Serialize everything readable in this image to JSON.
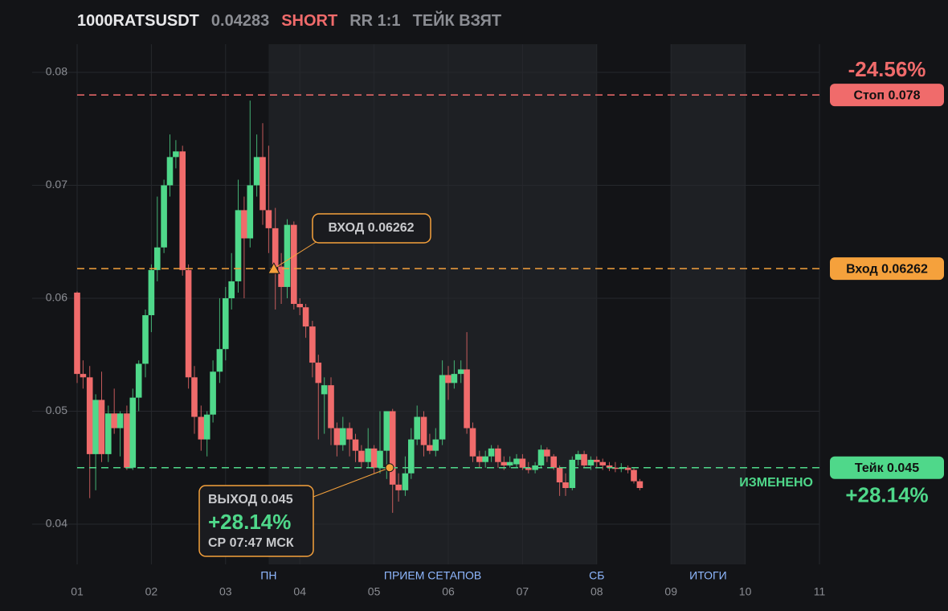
{
  "chart_data": {
    "type": "candlestick",
    "header": {
      "symbol": "1000RATSUSDT",
      "price": 0.04283,
      "side": "SHORT",
      "rr": "RR 1:1",
      "status": "ТЕЙК ВЗЯТ"
    },
    "xlim": [
      1,
      11
    ],
    "ylim": [
      0.03644,
      0.08249
    ],
    "xticks": [
      {
        "value": 1,
        "label": "01"
      },
      {
        "value": 2,
        "label": "02"
      },
      {
        "value": 3,
        "label": "03"
      },
      {
        "value": 4,
        "label": "04"
      },
      {
        "value": 5,
        "label": "05"
      },
      {
        "value": 6,
        "label": "06"
      },
      {
        "value": 7,
        "label": "07"
      },
      {
        "value": 8,
        "label": "08"
      },
      {
        "value": 9,
        "label": "09"
      },
      {
        "value": 10,
        "label": "10"
      },
      {
        "value": 11,
        "label": "11"
      }
    ],
    "yticks": [
      0.04,
      0.05,
      0.06,
      0.07,
      0.08
    ],
    "grid": true,
    "up_color": "#4fd88a",
    "down_color": "#f06b6b",
    "zones": [
      {
        "label": "ПРИЕМ СЕТАПОВ",
        "start": 3.58,
        "end": 8
      },
      {
        "label": "ИТОГИ",
        "start": 9,
        "end": 10
      }
    ],
    "markers": [
      {
        "label": "ПН",
        "x": 3.58
      },
      {
        "label": "СБ",
        "x": 8
      }
    ],
    "levels": [
      {
        "value": 0.078,
        "label": "Стоп 0.078",
        "color": "#f06b6b",
        "result": "-24.56%"
      },
      {
        "value": 0.06262,
        "label": "Вход 0.06262",
        "color": "#f5a13c"
      },
      {
        "value": 0.045,
        "label": "Тейк 0.045",
        "color": "#4fd88a",
        "result": "+28.14%",
        "note": "ИЗМЕНЕНО"
      }
    ],
    "entry": {
      "label": "ВХОД 0.06262",
      "x": 3.65,
      "y": 0.06262
    },
    "exit": {
      "label": "ВЫХОД 0.045",
      "result": "+28.14%",
      "time": "СР 07:47 МСК",
      "x": 5.21,
      "y": 0.045
    },
    "x": [
      1,
      1.08,
      1.17,
      1.25,
      1.33,
      1.42,
      1.5,
      1.58,
      1.67,
      1.75,
      1.83,
      1.92,
      2,
      2.08,
      2.17,
      2.25,
      2.33,
      2.42,
      2.5,
      2.58,
      2.67,
      2.75,
      2.83,
      2.92,
      3,
      3.08,
      3.17,
      3.25,
      3.33,
      3.42,
      3.5,
      3.58,
      3.67,
      3.75,
      3.83,
      3.92,
      4,
      4.08,
      4.17,
      4.25,
      4.33,
      4.42,
      4.5,
      4.58,
      4.67,
      4.75,
      4.83,
      4.92,
      5,
      5.08,
      5.17,
      5.25,
      5.33,
      5.42,
      5.5,
      5.58,
      5.67,
      5.75,
      5.83,
      5.92,
      6,
      6.08,
      6.17,
      6.25,
      6.33,
      6.42,
      6.5,
      6.58,
      6.67,
      6.75,
      6.83,
      6.92,
      7,
      7.08,
      7.17,
      7.25,
      7.33,
      7.42,
      7.5,
      7.58,
      7.67,
      7.75,
      7.83,
      7.92,
      8,
      8.08,
      8.17,
      8.25,
      8.33,
      8.42,
      8.5,
      8.58
    ],
    "open": [
      0.0605,
      0.0533,
      0.053,
      0.0462,
      0.051,
      0.0462,
      0.0498,
      0.0485,
      0.0498,
      0.045,
      0.0512,
      0.0542,
      0.0585,
      0.0625,
      0.0645,
      0.07,
      0.0725,
      0.073,
      0.0625,
      0.053,
      0.0495,
      0.0475,
      0.0497,
      0.0535,
      0.0555,
      0.06,
      0.0615,
      0.0678,
      0.0653,
      0.07,
      0.0725,
      0.0678,
      0.0662,
      0.0628,
      0.061,
      0.0665,
      0.0595,
      0.0592,
      0.0575,
      0.0543,
      0.0515,
      0.0523,
      0.0485,
      0.047,
      0.0485,
      0.0475,
      0.0465,
      0.0455,
      0.0467,
      0.045,
      0.0465,
      0.05,
      0.0435,
      0.043,
      0.0445,
      0.0475,
      0.0495,
      0.047,
      0.0465,
      0.0475,
      0.0532,
      0.0525,
      0.0533,
      0.0537,
      0.0485,
      0.046,
      0.0455,
      0.046,
      0.0467,
      0.0455,
      0.0452,
      0.0453,
      0.0458,
      0.045,
      0.0448,
      0.0452,
      0.0466,
      0.046,
      0.045,
      0.0437,
      0.0432,
      0.0457,
      0.0462,
      0.0452,
      0.0457,
      0.0455,
      0.0452,
      0.045,
      0.0449,
      0.045,
      0.0448,
      0.0438
    ],
    "high": [
      0.0606,
      0.0545,
      0.054,
      0.0515,
      0.0535,
      0.0505,
      0.052,
      0.05,
      0.0505,
      0.052,
      0.0545,
      0.059,
      0.063,
      0.069,
      0.0705,
      0.0745,
      0.074,
      0.0735,
      0.063,
      0.054,
      0.0505,
      0.05,
      0.0545,
      0.06,
      0.061,
      0.064,
      0.0705,
      0.069,
      0.0775,
      0.0745,
      0.0755,
      0.0735,
      0.068,
      0.064,
      0.067,
      0.0668,
      0.06,
      0.0595,
      0.058,
      0.055,
      0.053,
      0.053,
      0.049,
      0.0495,
      0.049,
      0.048,
      0.047,
      0.0485,
      0.047,
      0.05,
      0.05,
      0.0502,
      0.0445,
      0.046,
      0.0485,
      0.0505,
      0.05,
      0.048,
      0.0485,
      0.0545,
      0.054,
      0.0545,
      0.0545,
      0.057,
      0.049,
      0.0465,
      0.0465,
      0.047,
      0.047,
      0.046,
      0.046,
      0.0462,
      0.0462,
      0.0455,
      0.0455,
      0.047,
      0.0468,
      0.0462,
      0.0452,
      0.0445,
      0.046,
      0.0465,
      0.0465,
      0.046,
      0.046,
      0.0458,
      0.0455,
      0.0455,
      0.0454,
      0.0452,
      0.045,
      0.044
    ],
    "low": [
      0.0525,
      0.052,
      0.0423,
      0.043,
      0.0455,
      0.0455,
      0.048,
      0.046,
      0.0448,
      0.0448,
      0.05,
      0.053,
      0.057,
      0.0615,
      0.064,
      0.069,
      0.0715,
      0.062,
      0.052,
      0.048,
      0.0465,
      0.046,
      0.049,
      0.0525,
      0.0545,
      0.059,
      0.0605,
      0.06,
      0.0645,
      0.069,
      0.0665,
      0.064,
      0.059,
      0.0595,
      0.06,
      0.059,
      0.0585,
      0.0565,
      0.053,
      0.0475,
      0.048,
      0.047,
      0.046,
      0.0465,
      0.046,
      0.0455,
      0.045,
      0.045,
      0.0445,
      0.0445,
      0.044,
      0.041,
      0.042,
      0.0425,
      0.044,
      0.047,
      0.046,
      0.0462,
      0.046,
      0.047,
      0.051,
      0.052,
      0.0525,
      0.048,
      0.0455,
      0.045,
      0.045,
      0.0455,
      0.045,
      0.0448,
      0.045,
      0.045,
      0.0448,
      0.0445,
      0.0445,
      0.045,
      0.0455,
      0.0448,
      0.0425,
      0.0425,
      0.043,
      0.0452,
      0.045,
      0.0448,
      0.045,
      0.0448,
      0.0447,
      0.0446,
      0.0446,
      0.0445,
      0.0436,
      0.043
    ],
    "close": [
      0.0533,
      0.053,
      0.0462,
      0.051,
      0.0462,
      0.0498,
      0.0485,
      0.0498,
      0.045,
      0.0512,
      0.0542,
      0.0585,
      0.0625,
      0.0645,
      0.07,
      0.0725,
      0.073,
      0.0625,
      0.053,
      0.0495,
      0.0475,
      0.0497,
      0.0535,
      0.0555,
      0.06,
      0.0615,
      0.0678,
      0.0653,
      0.07,
      0.0725,
      0.0678,
      0.0662,
      0.0628,
      0.061,
      0.0665,
      0.0595,
      0.0592,
      0.0575,
      0.0543,
      0.0525,
      0.0523,
      0.0485,
      0.047,
      0.0485,
      0.0475,
      0.0465,
      0.0455,
      0.0467,
      0.045,
      0.0465,
      0.05,
      0.0435,
      0.043,
      0.0445,
      0.0475,
      0.0495,
      0.047,
      0.0465,
      0.0475,
      0.0532,
      0.0525,
      0.0533,
      0.0537,
      0.0485,
      0.046,
      0.0455,
      0.046,
      0.0467,
      0.0455,
      0.0452,
      0.0455,
      0.0458,
      0.045,
      0.0448,
      0.0452,
      0.0466,
      0.046,
      0.045,
      0.0437,
      0.0432,
      0.0457,
      0.0462,
      0.0452,
      0.0457,
      0.0455,
      0.0452,
      0.045,
      0.0449,
      0.045,
      0.0448,
      0.0438,
      0.0432
    ]
  }
}
